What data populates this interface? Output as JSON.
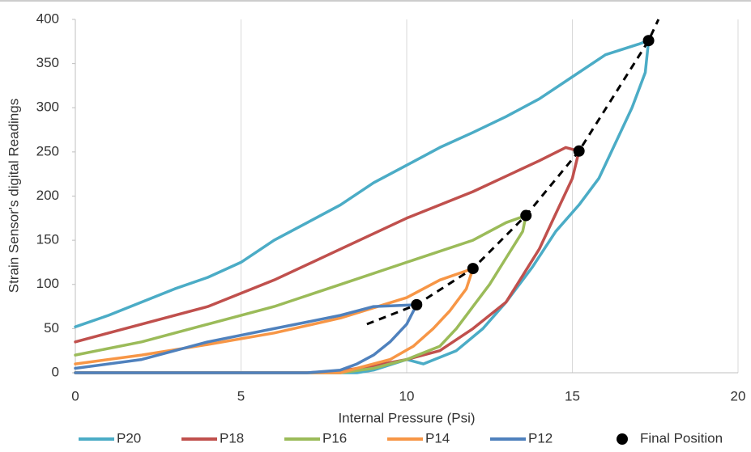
{
  "chart_data": {
    "type": "line",
    "x_label": "Internal Pressure (Psi)",
    "y_label": "Strain Sensor's digital Readings",
    "xlim": [
      0,
      20
    ],
    "xticks": [
      0,
      5,
      10,
      15,
      20
    ],
    "ylim": [
      0,
      400
    ],
    "yticks": [
      0,
      50,
      100,
      150,
      200,
      250,
      300,
      350,
      400
    ],
    "grid": "vertical",
    "legend": "bottom",
    "series": [
      {
        "name": "P20",
        "color": "#4bacc6",
        "x": [
          0,
          1,
          2,
          3,
          4,
          5,
          6,
          7,
          8,
          9,
          10,
          11,
          12,
          13,
          14,
          15,
          16,
          17,
          17.3,
          17.2,
          16.8,
          16.3,
          15.8,
          15.2,
          14.5,
          13.8,
          13,
          12.3,
          11.5,
          10.5,
          10,
          9,
          8.5,
          5,
          0
        ],
        "values": [
          52,
          65,
          80,
          95,
          108,
          125,
          150,
          170,
          190,
          215,
          235,
          255,
          272,
          290,
          310,
          335,
          360,
          372,
          376,
          340,
          300,
          260,
          220,
          190,
          160,
          120,
          80,
          50,
          25,
          10,
          15,
          3,
          0,
          0,
          0
        ]
      },
      {
        "name": "P18",
        "color": "#c0504d",
        "x": [
          0,
          2,
          4,
          6,
          8,
          10,
          12,
          14,
          14.8,
          15.2,
          15,
          14.5,
          14,
          13.5,
          13,
          12,
          11,
          10,
          9,
          8,
          7,
          0
        ],
        "values": [
          35,
          55,
          75,
          105,
          140,
          175,
          205,
          240,
          255,
          251,
          220,
          180,
          140,
          110,
          80,
          50,
          25,
          15,
          8,
          2,
          0,
          0
        ]
      },
      {
        "name": "P16",
        "color": "#9bbb59",
        "x": [
          0,
          2,
          4,
          6,
          8,
          10,
          12,
          13,
          13.6,
          13.5,
          13,
          12.5,
          12,
          11.5,
          11,
          10,
          9,
          8,
          0
        ],
        "values": [
          20,
          35,
          55,
          75,
          100,
          125,
          150,
          170,
          178,
          160,
          130,
          100,
          75,
          50,
          30,
          15,
          5,
          0,
          0
        ]
      },
      {
        "name": "P14",
        "color": "#f79646",
        "x": [
          0,
          2,
          4,
          6,
          8,
          10,
          11,
          12,
          11.8,
          11.3,
          10.8,
          10.2,
          9.5,
          8.5,
          8,
          0
        ],
        "values": [
          10,
          20,
          32,
          45,
          62,
          85,
          105,
          118,
          95,
          70,
          50,
          30,
          15,
          5,
          0,
          0
        ]
      },
      {
        "name": "P12",
        "color": "#4f81bd",
        "x": [
          0,
          2,
          4,
          6,
          8,
          9,
          10.3,
          10,
          9.5,
          9,
          8.5,
          8,
          7,
          0
        ],
        "values": [
          5,
          15,
          35,
          50,
          65,
          75,
          77,
          55,
          35,
          20,
          10,
          3,
          0,
          0
        ]
      }
    ],
    "final_position": {
      "name": "Final Position",
      "color": "#000000",
      "x": [
        10.3,
        12,
        13.6,
        15.2,
        17.3
      ],
      "values": [
        77,
        118,
        178,
        251,
        376
      ]
    },
    "trendline": {
      "color": "#000000",
      "x": [
        8.8,
        10.3,
        12,
        13.6,
        15.2,
        17.3,
        17.6
      ],
      "values": [
        55,
        77,
        118,
        178,
        251,
        376,
        400
      ]
    }
  }
}
